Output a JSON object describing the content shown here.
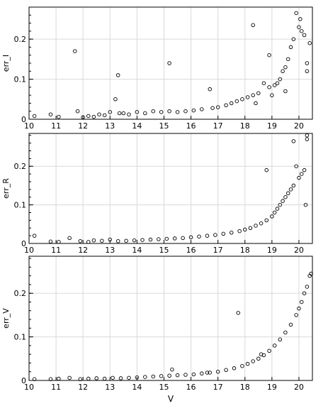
{
  "chart_data": [
    {
      "type": "scatter",
      "title": "",
      "xlabel": "",
      "ylabel": "err_I",
      "xlim": [
        10,
        20.5
      ],
      "ylim": [
        0,
        0.28
      ],
      "xticks": [
        "10",
        "11",
        "12",
        "13",
        "14",
        "15",
        "16",
        "17",
        "18",
        "19",
        "20"
      ],
      "yticks": [
        "0",
        "0.1",
        "0.2"
      ],
      "grid": true,
      "marker": "open-circle",
      "series": [
        {
          "x": [
            10.2,
            10.8,
            11.1,
            11.7,
            11.8,
            12.0,
            12.2,
            12.4,
            12.6,
            12.8,
            13.0,
            13.2,
            13.3,
            13.35,
            13.5,
            13.7,
            14.0,
            14.3,
            14.6,
            14.9,
            15.2,
            15.2,
            15.5,
            15.8,
            16.1,
            16.4,
            16.7,
            16.8,
            17.0,
            17.3,
            17.5,
            17.7,
            17.9,
            18.1,
            18.3,
            18.3,
            18.5,
            18.7,
            18.9,
            18.9,
            19.1,
            19.2,
            19.3,
            19.4,
            19.5,
            19.6,
            19.7,
            19.8,
            19.9,
            20.0,
            20.05,
            20.1,
            20.2,
            20.3,
            20.4,
            18.4,
            19.0,
            19.5,
            20.3
          ],
          "y": [
            0.008,
            0.012,
            0.006,
            0.17,
            0.02,
            0.005,
            0.008,
            0.006,
            0.012,
            0.01,
            0.018,
            0.05,
            0.11,
            0.015,
            0.015,
            0.012,
            0.018,
            0.015,
            0.02,
            0.018,
            0.14,
            0.02,
            0.018,
            0.02,
            0.022,
            0.025,
            0.075,
            0.028,
            0.03,
            0.035,
            0.04,
            0.045,
            0.05,
            0.055,
            0.235,
            0.06,
            0.065,
            0.09,
            0.16,
            0.08,
            0.085,
            0.09,
            0.1,
            0.12,
            0.13,
            0.15,
            0.18,
            0.2,
            0.265,
            0.23,
            0.25,
            0.22,
            0.21,
            0.14,
            0.19,
            0.04,
            0.06,
            0.07,
            0.12
          ]
        }
      ]
    },
    {
      "type": "scatter",
      "title": "",
      "xlabel": "",
      "ylabel": "err_R",
      "xlim": [
        10,
        20.5
      ],
      "ylim": [
        0,
        0.285
      ],
      "xticks": [
        "10",
        "11",
        "12",
        "13",
        "14",
        "15",
        "16",
        "17",
        "18",
        "19",
        "20"
      ],
      "yticks": [
        "0",
        "0.1",
        "0.2"
      ],
      "grid": true,
      "marker": "open-circle",
      "series": [
        {
          "x": [
            10.2,
            10.8,
            11.1,
            11.5,
            11.9,
            12.2,
            12.4,
            12.7,
            13.0,
            13.3,
            13.6,
            13.9,
            14.2,
            14.5,
            14.8,
            15.1,
            15.4,
            15.7,
            16.0,
            16.3,
            16.6,
            16.9,
            17.2,
            17.5,
            17.8,
            18.0,
            18.2,
            18.4,
            18.6,
            18.8,
            18.8,
            19.0,
            19.1,
            19.2,
            19.3,
            19.4,
            19.5,
            19.6,
            19.7,
            19.8,
            19.9,
            20.0,
            20.1,
            20.2,
            20.3,
            20.3,
            19.8,
            20.25
          ],
          "y": [
            0.02,
            0.005,
            0.004,
            0.014,
            0.006,
            0.004,
            0.008,
            0.007,
            0.01,
            0.006,
            0.007,
            0.008,
            0.009,
            0.01,
            0.011,
            0.012,
            0.013,
            0.014,
            0.016,
            0.018,
            0.02,
            0.022,
            0.025,
            0.028,
            0.032,
            0.036,
            0.04,
            0.046,
            0.052,
            0.19,
            0.06,
            0.07,
            0.08,
            0.09,
            0.1,
            0.11,
            0.12,
            0.13,
            0.14,
            0.15,
            0.2,
            0.17,
            0.18,
            0.19,
            0.28,
            0.27,
            0.265,
            0.1
          ]
        }
      ]
    },
    {
      "type": "scatter",
      "title": "",
      "xlabel": "V",
      "ylabel": "err_V",
      "xlim": [
        10,
        20.5
      ],
      "ylim": [
        0,
        0.285
      ],
      "xticks": [
        "10",
        "11",
        "12",
        "13",
        "14",
        "15",
        "16",
        "17",
        "18",
        "19",
        "20"
      ],
      "yticks": [
        "0",
        "0.1",
        "0.2"
      ],
      "grid": true,
      "marker": "open-circle",
      "series": [
        {
          "x": [
            10.2,
            10.8,
            11.1,
            11.5,
            11.9,
            12.2,
            12.5,
            12.8,
            13.1,
            13.4,
            13.7,
            14.0,
            14.3,
            14.6,
            14.9,
            15.2,
            15.5,
            15.8,
            16.1,
            16.4,
            16.7,
            17.0,
            17.3,
            17.6,
            17.75,
            17.9,
            18.1,
            18.3,
            18.5,
            18.7,
            18.9,
            19.1,
            19.3,
            19.5,
            19.7,
            19.9,
            20.0,
            20.1,
            20.2,
            20.3,
            20.4,
            20.45,
            15.3,
            16.6,
            18.6
          ],
          "y": [
            0.003,
            0.003,
            0.004,
            0.006,
            0.003,
            0.004,
            0.005,
            0.004,
            0.006,
            0.005,
            0.006,
            0.007,
            0.008,
            0.009,
            0.01,
            0.011,
            0.012,
            0.013,
            0.014,
            0.016,
            0.018,
            0.02,
            0.024,
            0.028,
            0.155,
            0.033,
            0.038,
            0.044,
            0.05,
            0.058,
            0.068,
            0.08,
            0.094,
            0.11,
            0.128,
            0.15,
            0.165,
            0.18,
            0.2,
            0.215,
            0.24,
            0.245,
            0.025,
            0.018,
            0.06
          ]
        }
      ]
    }
  ]
}
